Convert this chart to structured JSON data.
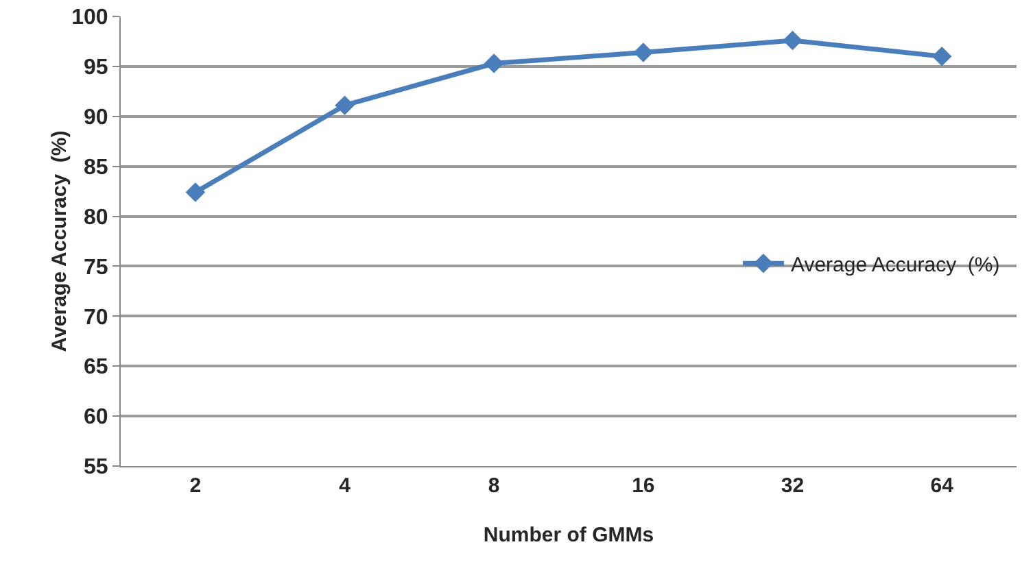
{
  "chart_data": {
    "type": "line",
    "xlabel": "Number of GMMs",
    "ylabel": "Average Accuracy  (%)",
    "categories": [
      "2",
      "4",
      "8",
      "16",
      "32",
      "64"
    ],
    "series": [
      {
        "name": "Average Accuracy  (%)",
        "color": "#4a7ebb",
        "values": [
          82.4,
          91.1,
          95.3,
          96.4,
          97.6,
          96.0
        ]
      }
    ],
    "ylim": [
      55,
      100
    ],
    "yticks": [
      55,
      60,
      65,
      70,
      75,
      80,
      85,
      90,
      95,
      100
    ],
    "grid": "y",
    "legend": "right",
    "marker": "diamond",
    "line_style": "solid"
  }
}
